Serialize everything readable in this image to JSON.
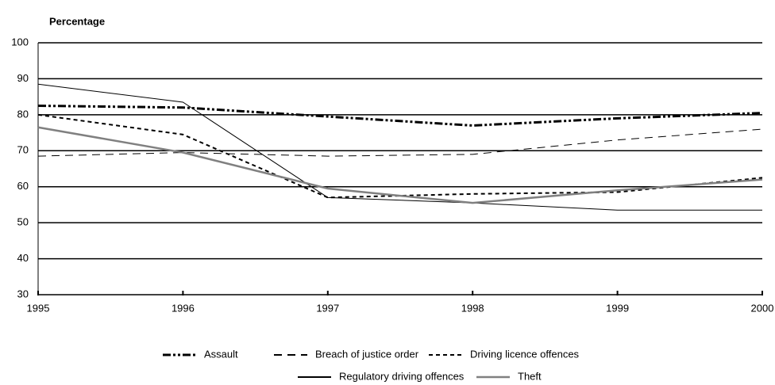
{
  "chart_data": {
    "type": "line",
    "title": "Percentage",
    "x": [
      1995,
      1996,
      1997,
      1998,
      1999,
      2000
    ],
    "xlim": [
      1995,
      2000
    ],
    "xticks": [
      1995,
      1996,
      1997,
      1998,
      1999,
      2000
    ],
    "ylim": [
      30,
      100
    ],
    "yticks": [
      30,
      40,
      50,
      60,
      70,
      80,
      90,
      100
    ],
    "grid": true,
    "legend": "bottom",
    "series": [
      {
        "name": "Assault",
        "color": "#000000",
        "width": 3,
        "dash": "10 3 3 3 3 3",
        "values": [
          82.5,
          82,
          79.5,
          77,
          79,
          80.5
        ]
      },
      {
        "name": "Breach of justice order",
        "color": "#000000",
        "width": 1,
        "dash": "10 7",
        "values": [
          68.5,
          69.5,
          68.5,
          69,
          73,
          76
        ]
      },
      {
        "name": "Driving licence offences",
        "color": "#000000",
        "width": 2,
        "dash": "5 4",
        "values": [
          80,
          74.5,
          57,
          58,
          58.5,
          62.5
        ]
      },
      {
        "name": "Regulatory driving offences",
        "color": "#000000",
        "width": 1,
        "dash": "",
        "values": [
          88.5,
          83.5,
          57,
          55.5,
          53.5,
          53.5
        ]
      },
      {
        "name": "Theft",
        "color": "#808080",
        "width": 2.5,
        "dash": "",
        "values": [
          76.5,
          69.5,
          59.5,
          55.5,
          59,
          62
        ]
      }
    ]
  }
}
